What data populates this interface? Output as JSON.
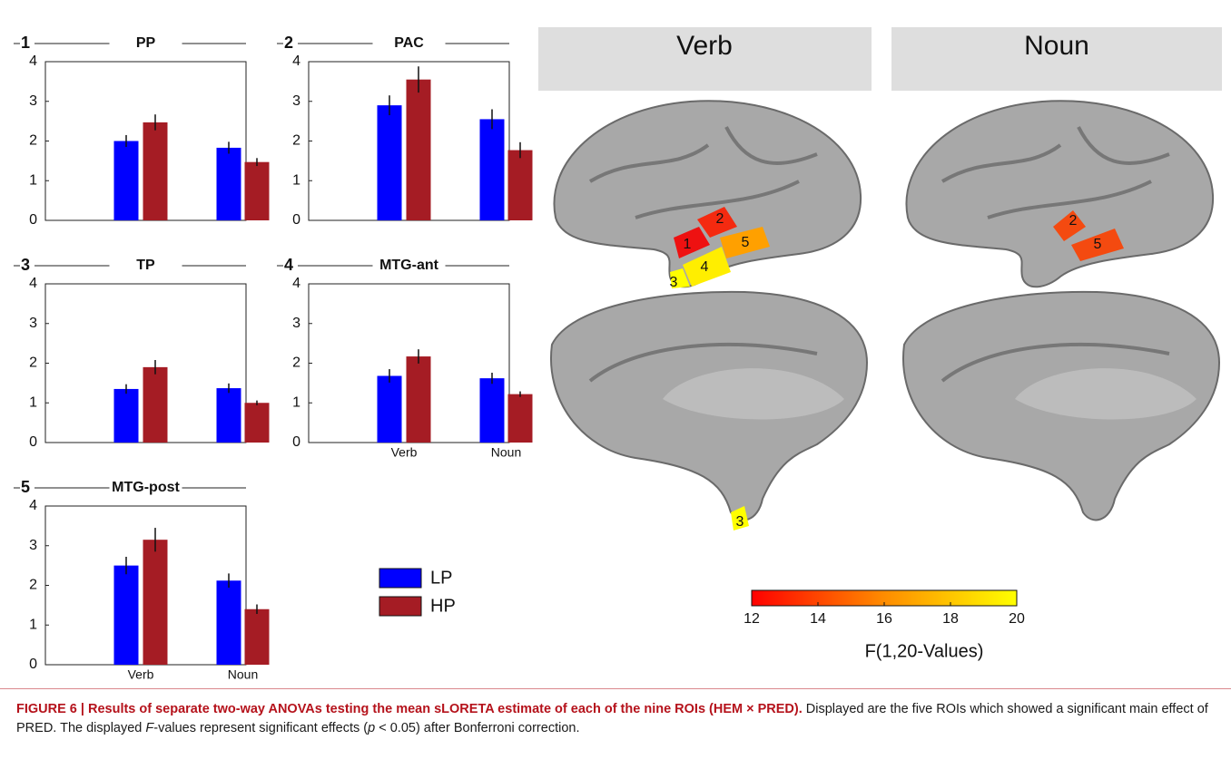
{
  "chart_data": [
    {
      "type": "bar",
      "number": "1",
      "title": "PP",
      "categories": [
        null,
        null
      ],
      "ylim": [
        0,
        4
      ],
      "yticks": [
        0,
        1,
        2,
        3,
        4
      ],
      "series": [
        {
          "values": [
            2.0,
            1.83
          ],
          "errors": [
            0.15,
            0.15
          ]
        },
        {
          "values": [
            2.47,
            1.47
          ],
          "errors": [
            0.2,
            0.1
          ]
        }
      ]
    },
    {
      "type": "bar",
      "number": "2",
      "title": "PAC",
      "categories": [
        null,
        null
      ],
      "ylim": [
        0,
        4
      ],
      "yticks": [
        0,
        1,
        2,
        3,
        4
      ],
      "series": [
        {
          "values": [
            2.9,
            2.55
          ],
          "errors": [
            0.25,
            0.25
          ]
        },
        {
          "values": [
            3.55,
            1.77
          ],
          "errors": [
            0.33,
            0.2
          ]
        }
      ]
    },
    {
      "type": "bar",
      "number": "3",
      "title": "TP",
      "categories": [
        null,
        null
      ],
      "ylim": [
        0,
        4
      ],
      "yticks": [
        0,
        1,
        2,
        3,
        4
      ],
      "series": [
        {
          "values": [
            1.35,
            1.37
          ],
          "errors": [
            0.12,
            0.12
          ]
        },
        {
          "values": [
            1.9,
            1.0
          ],
          "errors": [
            0.18,
            0.06
          ]
        }
      ]
    },
    {
      "type": "bar",
      "number": "4",
      "title": "MTG-ant",
      "categories": [
        "Verb",
        "Noun"
      ],
      "ylim": [
        0,
        4
      ],
      "yticks": [
        0,
        1,
        2,
        3,
        4
      ],
      "series": [
        {
          "values": [
            1.68,
            1.62
          ],
          "errors": [
            0.17,
            0.14
          ]
        },
        {
          "values": [
            2.17,
            1.22
          ],
          "errors": [
            0.18,
            0.07
          ]
        }
      ]
    },
    {
      "type": "bar",
      "number": "5",
      "title": "MTG-post",
      "categories": [
        "Verb",
        "Noun"
      ],
      "ylim": [
        0,
        4
      ],
      "yticks": [
        0,
        1,
        2,
        3,
        4
      ],
      "series": [
        {
          "values": [
            2.5,
            2.12
          ],
          "errors": [
            0.22,
            0.18
          ]
        },
        {
          "values": [
            3.15,
            1.4
          ],
          "errors": [
            0.3,
            0.12
          ]
        }
      ]
    },
    {
      "type": "colorbar",
      "xlim": [
        12,
        20
      ],
      "xticks": [
        12,
        14,
        16,
        18,
        20
      ],
      "xlabel": "F(1,20-Values)",
      "colors": [
        "#ff0000",
        "#ff8c00",
        "#ffff00"
      ]
    }
  ],
  "legend": {
    "series": [
      {
        "name": "LP",
        "color": "#0000ff"
      },
      {
        "name": "HP",
        "color": "#a51c24"
      }
    ]
  },
  "brain_maps": {
    "columns": [
      "Verb",
      "Noun"
    ],
    "verb_lateral": [
      "1",
      "2",
      "3",
      "4",
      "5"
    ],
    "verb_medial": [
      "3"
    ],
    "noun_lateral": [
      "2",
      "5"
    ]
  },
  "caption": {
    "bold": "FIGURE 6 | Results of separate two-way ANOVAs testing the mean sLORETA estimate of each of the nine ROIs (HEM × PRED).",
    "parts": [
      " Displayed are the five ROIs which showed a significant main effect of PRED. The displayed ",
      "F",
      "-values represent significant effects (",
      "p",
      " < 0.05) after Bonferroni correction."
    ]
  }
}
